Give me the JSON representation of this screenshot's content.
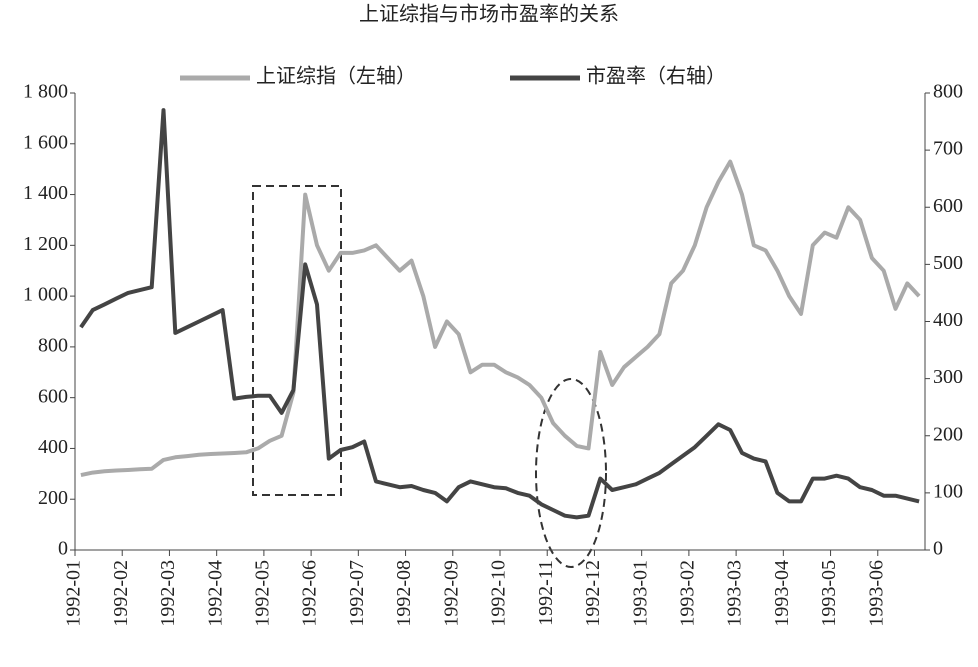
{
  "chart_data": {
    "type": "line",
    "title": "上证综指与市场市盈率的关系",
    "xticks": [
      "1992-01",
      "1992-02",
      "1992-03",
      "1992-04",
      "1992-05",
      "1992-06",
      "1992-07",
      "1992-08",
      "1992-09",
      "1992-10",
      "1992-11",
      "1992-12",
      "1993-01",
      "1993-02",
      "1993-03",
      "1993-04",
      "1993-05",
      "1993-06"
    ],
    "x": [
      "1992-01",
      "1992-01",
      "1992-01",
      "1992-01",
      "1992-02",
      "1992-02",
      "1992-02",
      "1992-02",
      "1992-03",
      "1992-03",
      "1992-03",
      "1992-03",
      "1992-04",
      "1992-04",
      "1992-04",
      "1992-04",
      "1992-05",
      "1992-05",
      "1992-05",
      "1992-05",
      "1992-06",
      "1992-06",
      "1992-06",
      "1992-06",
      "1992-07",
      "1992-07",
      "1992-07",
      "1992-07",
      "1992-08",
      "1992-08",
      "1992-08",
      "1992-08",
      "1992-09",
      "1992-09",
      "1992-09",
      "1992-09",
      "1992-10",
      "1992-10",
      "1992-10",
      "1992-10",
      "1992-11",
      "1992-11",
      "1992-11",
      "1992-11",
      "1992-12",
      "1992-12",
      "1992-12",
      "1992-12",
      "1993-01",
      "1993-01",
      "1993-01",
      "1993-01",
      "1993-02",
      "1993-02",
      "1993-02",
      "1993-02",
      "1993-03",
      "1993-03",
      "1993-03",
      "1993-03",
      "1993-04",
      "1993-04",
      "1993-04",
      "1993-04",
      "1993-05",
      "1993-05",
      "1993-05",
      "1993-05",
      "1993-06",
      "1993-06",
      "1993-06",
      "1993-06"
    ],
    "series": [
      {
        "name": "上证综指（左轴）",
        "color": "#aaaaaa",
        "values": [
          295,
          305,
          310,
          313,
          315,
          318,
          320,
          355,
          365,
          370,
          375,
          378,
          380,
          382,
          385,
          400,
          430,
          450,
          620,
          1400,
          1200,
          1100,
          1170,
          1170,
          1180,
          1200,
          1150,
          1100,
          1140,
          1000,
          800,
          900,
          850,
          700,
          730,
          730,
          700,
          680,
          650,
          600,
          500,
          450,
          410,
          400,
          780,
          650,
          720,
          760,
          800,
          850,
          1050,
          1100,
          1200,
          1350,
          1450,
          1530,
          1400,
          1200,
          1180,
          1100,
          1000,
          930,
          1200,
          1250,
          1230,
          1350,
          1300,
          1150,
          1100,
          950,
          1050,
          1000
        ]
      },
      {
        "name": "市盈率（右轴）",
        "color": "#444444",
        "axis": "y2",
        "values": [
          390,
          420,
          430,
          440,
          450,
          455,
          460,
          770,
          380,
          390,
          400,
          410,
          420,
          265,
          268,
          270,
          270,
          240,
          280,
          500,
          430,
          160,
          175,
          180,
          190,
          120,
          115,
          110,
          112,
          105,
          100,
          85,
          110,
          120,
          115,
          110,
          108,
          100,
          95,
          80,
          70,
          60,
          57,
          60,
          125,
          105,
          110,
          115,
          125,
          135,
          150,
          165,
          180,
          200,
          220,
          210,
          170,
          160,
          155,
          100,
          85,
          85,
          125,
          125,
          130,
          125,
          110,
          105,
          95,
          95,
          90,
          85
        ]
      }
    ],
    "ylim": [
      0,
      1800
    ],
    "yticks": [
      0,
      {
        "value": 200,
        "label": "200"
      },
      400,
      600,
      800,
      {
        "value": 1000,
        "label": "1 000"
      },
      {
        "value": 1200,
        "label": "1 200"
      },
      {
        "value": 1400,
        "label": "1 400"
      },
      {
        "value": 1600,
        "label": "1 600"
      },
      {
        "value": 1800,
        "label": "1 800"
      }
    ],
    "y2lim": [
      0,
      800
    ],
    "y2ticks": [
      0,
      100,
      200,
      300,
      400,
      500,
      600,
      700,
      800
    ]
  }
}
